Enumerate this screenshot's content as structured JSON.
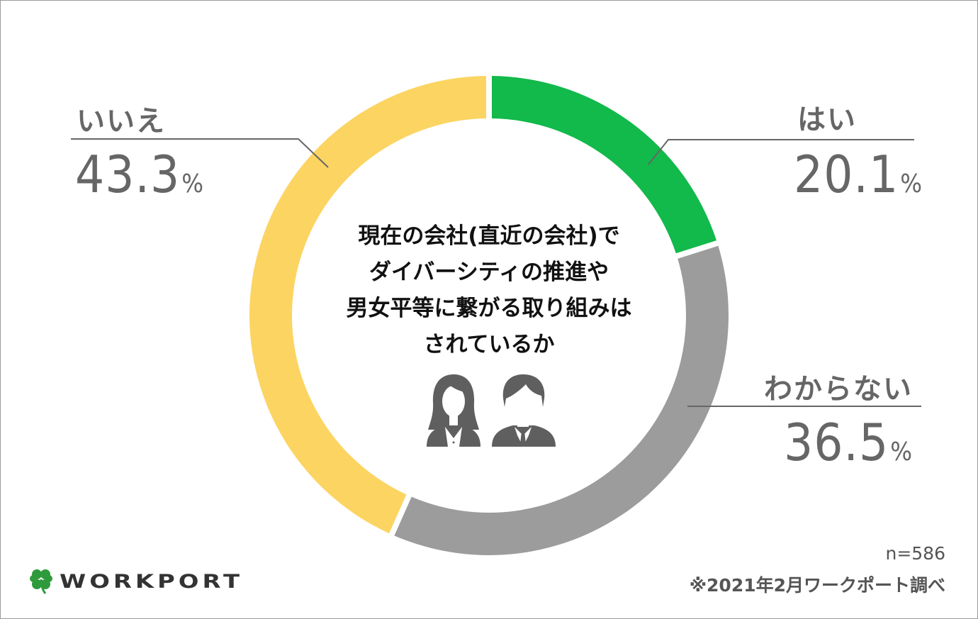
{
  "chart_data": {
    "type": "pie",
    "variant": "donut",
    "title": "現在の会社(直近の会社)でダイバーシティの推進や男女平等に繋がる取り組みはされているか",
    "categories": [
      "はい",
      "わからない",
      "いいえ"
    ],
    "values": [
      20.1,
      36.5,
      43.3
    ],
    "unit": "%",
    "colors": [
      "#12b94b",
      "#9c9c9c",
      "#fcd462"
    ],
    "start_angle_deg": 0,
    "direction": "clockwise",
    "legend_position": "callout labels"
  },
  "question_lines": [
    "現在の会社(直近の会社)で",
    "ダイバーシティの推進や",
    "男女平等に繋がる取り組みは",
    "されているか"
  ],
  "labels": {
    "yes": {
      "category": "はい",
      "value": "20.1",
      "unit": "%"
    },
    "unknown": {
      "category": "わからない",
      "value": "36.5",
      "unit": "%"
    },
    "no": {
      "category": "いいえ",
      "value": "43.3",
      "unit": "%"
    }
  },
  "icons": [
    "woman-avatar-icon",
    "man-avatar-icon",
    "clover-logo-icon"
  ],
  "footer": {
    "sample_size": "n=586",
    "source": "※2021年2月ワークポート調べ",
    "brand": "WORKPORT"
  }
}
